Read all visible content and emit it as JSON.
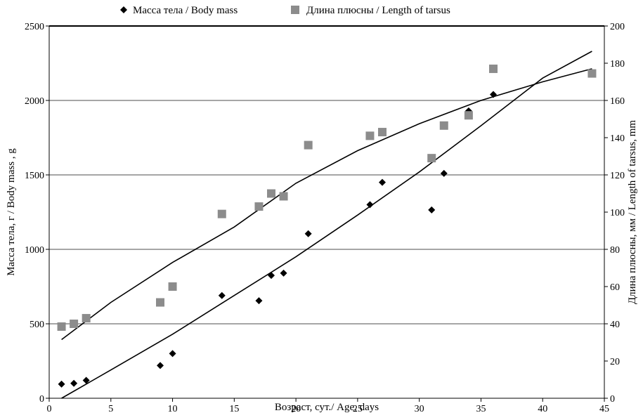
{
  "chart_data": {
    "type": "scatter",
    "xlabel": "Возраст, сут./ Age, days",
    "ylabel_left": "Масса тела, г  / Body mass , g",
    "ylabel_right": "Длина плюсны, мм / Length of tarsus, mm",
    "xlim": [
      0,
      45
    ],
    "ylim_left": [
      0,
      2500
    ],
    "ylim_right": [
      0,
      200
    ],
    "x_ticks": [
      0,
      5,
      10,
      15,
      20,
      25,
      30,
      35,
      40,
      45
    ],
    "y_left_ticks": [
      0,
      500,
      1000,
      1500,
      2000,
      2500
    ],
    "y_right_ticks": [
      0,
      20,
      40,
      60,
      80,
      100,
      120,
      140,
      160,
      180,
      200
    ],
    "grid": "horizontal",
    "legend_position": "top",
    "series": [
      {
        "name": "Масса тела / Body mass",
        "axis": "left",
        "marker": "diamond",
        "color": "#000000",
        "points": [
          [
            1,
            95
          ],
          [
            2,
            100
          ],
          [
            3,
            120
          ],
          [
            9,
            220
          ],
          [
            10,
            300
          ],
          [
            14,
            690
          ],
          [
            17,
            655
          ],
          [
            18,
            825
          ],
          [
            19,
            840
          ],
          [
            21,
            1105
          ],
          [
            26,
            1300
          ],
          [
            27,
            1450
          ],
          [
            31,
            1265
          ],
          [
            32,
            1510
          ],
          [
            34,
            1930
          ],
          [
            36,
            2040
          ]
        ],
        "trend": [
          [
            1,
            0
          ],
          [
            5,
            190
          ],
          [
            10,
            430
          ],
          [
            15,
            690
          ],
          [
            20,
            950
          ],
          [
            25,
            1230
          ],
          [
            30,
            1520
          ],
          [
            35,
            1830
          ],
          [
            40,
            2150
          ],
          [
            44,
            2330
          ]
        ]
      },
      {
        "name": "Длина плюсны / Length of tarsus",
        "axis": "right",
        "marker": "square",
        "color": "#8c8c8c",
        "points": [
          [
            1,
            38.5
          ],
          [
            2,
            40
          ],
          [
            3,
            43
          ],
          [
            9,
            51.5
          ],
          [
            10,
            60
          ],
          [
            14,
            99
          ],
          [
            17,
            103
          ],
          [
            18,
            110
          ],
          [
            19,
            108.5
          ],
          [
            21,
            136
          ],
          [
            26,
            141
          ],
          [
            27,
            143
          ],
          [
            31,
            129
          ],
          [
            32,
            146.5
          ],
          [
            34,
            152
          ],
          [
            36,
            177
          ],
          [
            44,
            174.5
          ]
        ],
        "trend": [
          [
            1,
            31.5
          ],
          [
            5,
            51.5
          ],
          [
            10,
            73
          ],
          [
            15,
            92
          ],
          [
            20,
            115.5
          ],
          [
            25,
            133
          ],
          [
            30,
            147.5
          ],
          [
            35,
            160
          ],
          [
            40,
            170
          ],
          [
            44,
            177
          ]
        ]
      }
    ]
  }
}
